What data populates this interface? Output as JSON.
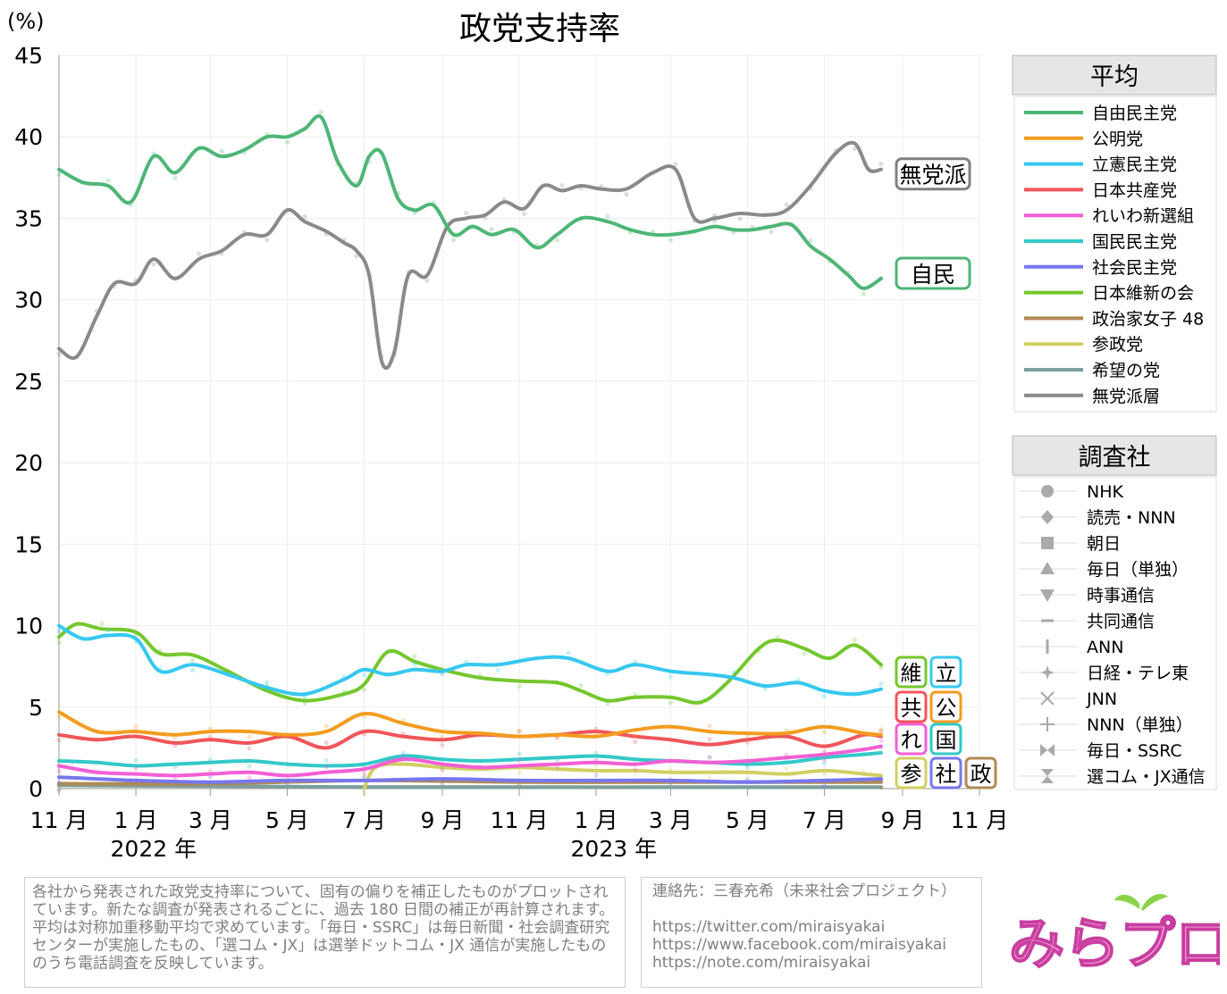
{
  "title": "政党支持率",
  "y_unit": "(%)",
  "chart_data": {
    "type": "line",
    "title": "政党支持率",
    "ylabel": "(%)",
    "ylim": [
      0,
      45
    ],
    "yticks": [
      0,
      5,
      10,
      15,
      20,
      25,
      30,
      35,
      40,
      45
    ],
    "xlim": [
      "2021-11-01",
      "2023-11-01"
    ],
    "x_ticks": [
      "11 月",
      "1 月",
      "3 月",
      "5 月",
      "7 月",
      "9 月",
      "11 月",
      "1 月",
      "3 月",
      "5 月",
      "7 月",
      "9 月",
      "11 月"
    ],
    "x_tick_dates": [
      "2021-11-01",
      "2022-01-01",
      "2022-03-01",
      "2022-05-01",
      "2022-07-01",
      "2022-09-01",
      "2022-11-01",
      "2023-01-01",
      "2023-03-01",
      "2023-05-01",
      "2023-07-01",
      "2023-09-01",
      "2023-11-01"
    ],
    "year_labels": [
      {
        "text": "2022 年",
        "date": "2022-01-15"
      },
      {
        "text": "2023 年",
        "date": "2023-01-15"
      }
    ],
    "grid": true,
    "legend_position": "right",
    "series": [
      {
        "name": "自由民主党",
        "color": "#4eb677",
        "x": [
          "2021-11-01",
          "2021-11-20",
          "2021-12-10",
          "2021-12-28",
          "2022-01-15",
          "2022-02-01",
          "2022-02-20",
          "2022-03-10",
          "2022-03-28",
          "2022-04-15",
          "2022-05-01",
          "2022-05-15",
          "2022-05-28",
          "2022-06-10",
          "2022-06-25",
          "2022-07-05",
          "2022-07-15",
          "2022-07-28",
          "2022-08-10",
          "2022-08-25",
          "2022-09-10",
          "2022-09-25",
          "2022-10-10",
          "2022-10-28",
          "2022-11-15",
          "2022-12-01",
          "2022-12-20",
          "2023-01-10",
          "2023-01-28",
          "2023-02-15",
          "2023-03-01",
          "2023-03-20",
          "2023-04-05",
          "2023-04-20",
          "2023-05-05",
          "2023-05-20",
          "2023-06-05",
          "2023-06-20",
          "2023-07-05",
          "2023-07-20",
          "2023-08-01",
          "2023-08-15"
        ],
        "y": [
          38.0,
          37.2,
          37.0,
          36.0,
          38.8,
          37.8,
          39.3,
          38.8,
          39.2,
          40.0,
          40.0,
          40.5,
          41.2,
          38.5,
          37.0,
          38.8,
          39.0,
          36.2,
          35.5,
          35.8,
          34.0,
          34.5,
          34.0,
          34.3,
          33.2,
          34.0,
          35.0,
          34.8,
          34.3,
          34.0,
          34.0,
          34.2,
          34.5,
          34.3,
          34.3,
          34.5,
          34.6,
          33.3,
          32.5,
          31.5,
          30.7,
          31.3
        ]
      },
      {
        "name": "公明党",
        "color": "#f39c1f",
        "x": [
          "2021-11-01",
          "2021-12-01",
          "2022-01-01",
          "2022-02-01",
          "2022-03-01",
          "2022-04-01",
          "2022-05-01",
          "2022-06-01",
          "2022-07-01",
          "2022-08-01",
          "2022-09-01",
          "2022-10-01",
          "2022-11-01",
          "2022-12-01",
          "2023-01-01",
          "2023-02-01",
          "2023-03-01",
          "2023-04-01",
          "2023-05-01",
          "2023-06-01",
          "2023-07-01",
          "2023-08-01",
          "2023-08-15"
        ],
        "y": [
          4.7,
          3.5,
          3.5,
          3.3,
          3.5,
          3.5,
          3.3,
          3.5,
          4.6,
          4.0,
          3.5,
          3.4,
          3.2,
          3.3,
          3.2,
          3.6,
          3.8,
          3.5,
          3.4,
          3.4,
          3.8,
          3.4,
          3.3
        ]
      },
      {
        "name": "立憲民主党",
        "color": "#36c8f0",
        "x": [
          "2021-11-01",
          "2021-11-20",
          "2021-12-10",
          "2022-01-01",
          "2022-01-20",
          "2022-02-15",
          "2022-03-15",
          "2022-04-15",
          "2022-05-15",
          "2022-06-15",
          "2022-07-01",
          "2022-07-20",
          "2022-08-10",
          "2022-09-01",
          "2022-09-20",
          "2022-10-15",
          "2022-11-15",
          "2022-12-10",
          "2023-01-10",
          "2023-02-01",
          "2023-03-01",
          "2023-04-01",
          "2023-04-20",
          "2023-05-15",
          "2023-06-10",
          "2023-07-01",
          "2023-07-25",
          "2023-08-15"
        ],
        "y": [
          10.0,
          9.2,
          9.4,
          9.2,
          7.2,
          7.6,
          7.0,
          6.2,
          5.8,
          6.7,
          7.3,
          7.0,
          7.3,
          7.2,
          7.6,
          7.6,
          8.0,
          8.0,
          7.2,
          7.6,
          7.2,
          7.0,
          6.8,
          6.3,
          6.5,
          6.0,
          5.8,
          6.1
        ]
      },
      {
        "name": "日本共産党",
        "color": "#f0555a",
        "x": [
          "2021-11-01",
          "2021-12-01",
          "2022-01-01",
          "2022-02-01",
          "2022-03-01",
          "2022-04-01",
          "2022-05-01",
          "2022-06-01",
          "2022-07-01",
          "2022-08-01",
          "2022-09-01",
          "2022-10-01",
          "2022-11-01",
          "2022-12-01",
          "2023-01-01",
          "2023-02-01",
          "2023-03-01",
          "2023-04-01",
          "2023-05-01",
          "2023-06-01",
          "2023-07-01",
          "2023-08-01",
          "2023-08-15"
        ],
        "y": [
          3.3,
          3.0,
          3.2,
          2.8,
          3.0,
          2.8,
          3.2,
          2.5,
          3.5,
          3.2,
          3.0,
          3.3,
          3.2,
          3.3,
          3.5,
          3.2,
          3.0,
          2.7,
          3.0,
          3.2,
          2.6,
          3.3,
          3.2
        ]
      },
      {
        "name": "れいわ新選組",
        "color": "#f35fd5",
        "x": [
          "2021-11-01",
          "2021-12-01",
          "2022-01-01",
          "2022-02-01",
          "2022-03-01",
          "2022-04-01",
          "2022-05-01",
          "2022-06-01",
          "2022-07-01",
          "2022-08-01",
          "2022-09-01",
          "2022-10-01",
          "2022-11-01",
          "2022-12-01",
          "2023-01-01",
          "2023-02-01",
          "2023-03-01",
          "2023-04-01",
          "2023-05-01",
          "2023-06-01",
          "2023-07-01",
          "2023-08-01",
          "2023-08-15"
        ],
        "y": [
          1.4,
          1.0,
          0.9,
          0.8,
          0.9,
          1.0,
          0.8,
          1.0,
          1.2,
          1.8,
          1.5,
          1.3,
          1.4,
          1.5,
          1.6,
          1.5,
          1.7,
          1.6,
          1.7,
          1.9,
          2.1,
          2.4,
          2.6
        ]
      },
      {
        "name": "国民民主党",
        "color": "#33c9c9",
        "x": [
          "2021-11-01",
          "2021-12-01",
          "2022-01-01",
          "2022-02-01",
          "2022-03-01",
          "2022-04-01",
          "2022-05-01",
          "2022-06-01",
          "2022-07-01",
          "2022-08-01",
          "2022-09-01",
          "2022-10-01",
          "2022-11-01",
          "2022-12-01",
          "2023-01-01",
          "2023-02-01",
          "2023-03-01",
          "2023-04-01",
          "2023-05-01",
          "2023-06-01",
          "2023-07-01",
          "2023-08-01",
          "2023-08-15"
        ],
        "y": [
          1.7,
          1.6,
          1.4,
          1.5,
          1.6,
          1.7,
          1.5,
          1.4,
          1.5,
          2.0,
          1.8,
          1.7,
          1.8,
          1.9,
          2.0,
          1.8,
          1.7,
          1.6,
          1.5,
          1.6,
          1.9,
          2.1,
          2.2
        ]
      },
      {
        "name": "社会民主党",
        "color": "#7777ee",
        "x": [
          "2021-11-01",
          "2022-01-01",
          "2022-03-01",
          "2022-05-01",
          "2022-07-01",
          "2022-09-01",
          "2022-11-01",
          "2023-01-01",
          "2023-03-01",
          "2023-05-01",
          "2023-07-01",
          "2023-08-15"
        ],
        "y": [
          0.7,
          0.5,
          0.4,
          0.5,
          0.5,
          0.6,
          0.5,
          0.5,
          0.5,
          0.4,
          0.5,
          0.6
        ]
      },
      {
        "name": "日本維新の会",
        "color": "#74c72d",
        "x": [
          "2021-11-01",
          "2021-11-15",
          "2021-12-05",
          "2022-01-01",
          "2022-01-20",
          "2022-02-15",
          "2022-03-15",
          "2022-04-15",
          "2022-05-15",
          "2022-06-15",
          "2022-07-01",
          "2022-07-20",
          "2022-08-10",
          "2022-09-01",
          "2022-10-01",
          "2022-11-01",
          "2022-12-01",
          "2022-12-20",
          "2023-01-10",
          "2023-02-01",
          "2023-03-01",
          "2023-03-25",
          "2023-04-15",
          "2023-05-10",
          "2023-05-25",
          "2023-06-15",
          "2023-07-05",
          "2023-07-25",
          "2023-08-15"
        ],
        "y": [
          9.3,
          10.1,
          9.8,
          9.6,
          8.3,
          8.2,
          7.2,
          6.0,
          5.4,
          5.8,
          6.4,
          8.4,
          7.8,
          7.3,
          6.8,
          6.6,
          6.5,
          6.0,
          5.4,
          5.6,
          5.6,
          5.3,
          6.5,
          8.6,
          9.1,
          8.6,
          8.0,
          8.8,
          7.6
        ]
      },
      {
        "name": "政治家女子 48",
        "color": "#b08a55",
        "x": [
          "2021-11-01",
          "2022-03-01",
          "2022-07-01",
          "2022-11-01",
          "2023-03-01",
          "2023-08-15"
        ],
        "y": [
          0.3,
          0.3,
          0.5,
          0.4,
          0.4,
          0.4
        ]
      },
      {
        "name": "参政党",
        "color": "#d1d062",
        "x": [
          "2022-07-01",
          "2022-07-10",
          "2022-08-01",
          "2022-09-01",
          "2022-10-01",
          "2022-11-01",
          "2022-12-01",
          "2023-01-01",
          "2023-02-01",
          "2023-03-01",
          "2023-04-01",
          "2023-05-01",
          "2023-06-01",
          "2023-07-01",
          "2023-08-01",
          "2023-08-15"
        ],
        "y": [
          0.0,
          1.3,
          1.5,
          1.3,
          1.2,
          1.3,
          1.2,
          1.1,
          1.1,
          1.0,
          1.0,
          1.0,
          0.9,
          1.1,
          0.9,
          0.8
        ]
      },
      {
        "name": "希望の党",
        "color": "#7c9f9b",
        "x": [
          "2021-11-01",
          "2022-07-01",
          "2023-08-15"
        ],
        "y": [
          0.2,
          0.1,
          0.1
        ]
      },
      {
        "name": "無党派層",
        "color": "#8a8a8a",
        "x": [
          "2021-11-01",
          "2021-11-15",
          "2021-12-01",
          "2021-12-15",
          "2022-01-01",
          "2022-01-15",
          "2022-02-01",
          "2022-02-20",
          "2022-03-10",
          "2022-03-28",
          "2022-04-15",
          "2022-05-01",
          "2022-05-15",
          "2022-06-01",
          "2022-06-15",
          "2022-06-25",
          "2022-07-05",
          "2022-07-15",
          "2022-07-25",
          "2022-08-05",
          "2022-08-20",
          "2022-09-05",
          "2022-09-20",
          "2022-10-05",
          "2022-10-20",
          "2022-11-05",
          "2022-11-20",
          "2022-12-05",
          "2022-12-20",
          "2023-01-05",
          "2023-01-25",
          "2023-02-15",
          "2023-03-05",
          "2023-03-20",
          "2023-04-05",
          "2023-04-25",
          "2023-05-15",
          "2023-06-01",
          "2023-06-20",
          "2023-07-10",
          "2023-07-25",
          "2023-08-05",
          "2023-08-15"
        ],
        "y": [
          27.0,
          26.5,
          29.0,
          31.0,
          31.0,
          32.5,
          31.3,
          32.5,
          33.0,
          34.0,
          34.0,
          35.5,
          34.8,
          34.2,
          33.5,
          33.0,
          31.5,
          26.2,
          26.8,
          31.5,
          31.5,
          34.5,
          35.0,
          35.2,
          36.0,
          35.6,
          37.0,
          36.7,
          37.0,
          36.8,
          36.8,
          37.8,
          38.0,
          35.0,
          35.0,
          35.3,
          35.2,
          35.5,
          37.0,
          39.0,
          39.6,
          38.0,
          38.0
        ]
      }
    ],
    "end_labels": [
      {
        "text": "無党派",
        "value": 38.0,
        "color": "#808080"
      },
      {
        "text": "自民",
        "value": 31.3,
        "color": "#4eb677"
      }
    ],
    "party_badges": [
      {
        "text": "維",
        "color": "#74c72d"
      },
      {
        "text": "立",
        "color": "#36c8f0"
      },
      {
        "text": "共",
        "color": "#f0555a"
      },
      {
        "text": "公",
        "color": "#f39c1f"
      },
      {
        "text": "れ",
        "color": "#f35fd5"
      },
      {
        "text": "国",
        "color": "#33c9c9"
      },
      {
        "text": "参",
        "color": "#d1d062"
      },
      {
        "text": "社",
        "color": "#7777ee"
      },
      {
        "text": "政",
        "color": "#b08a55"
      }
    ]
  },
  "legend_average": {
    "title": "平均",
    "items": [
      "自由民主党",
      "公明党",
      "立憲民主党",
      "日本共産党",
      "れいわ新選組",
      "国民民主党",
      "社会民主党",
      "日本維新の会",
      "政治家女子 48",
      "参政党",
      "希望の党",
      "無党派層"
    ]
  },
  "legend_pollsters": {
    "title": "調査社",
    "items": [
      {
        "label": "NHK",
        "marker": "circle"
      },
      {
        "label": "読売・NNN",
        "marker": "diamond"
      },
      {
        "label": "朝日",
        "marker": "square"
      },
      {
        "label": "毎日（単独）",
        "marker": "triangle-up"
      },
      {
        "label": "時事通信",
        "marker": "triangle-down"
      },
      {
        "label": "共同通信",
        "marker": "dash"
      },
      {
        "label": "ANN",
        "marker": "vbar"
      },
      {
        "label": "日経・テレ東",
        "marker": "star"
      },
      {
        "label": "JNN",
        "marker": "cross-x"
      },
      {
        "label": "NNN（単独）",
        "marker": "plus"
      },
      {
        "label": "毎日・SSRC",
        "marker": "bowtie"
      },
      {
        "label": "選コム・JX通信",
        "marker": "hourglass"
      }
    ]
  },
  "footer": {
    "note": "各社から発表された政党支持率について、固有の偏りを補正したものがプロットされています。新たな調査が発表されるごとに、過去 180 日間の補正が再計算されます。平均は対称加重移動平均で求めています。「毎日・SSRC」は毎日新聞・社会調査研究センターが実施したもの、「選コム・JX」は選挙ドットコム・JX 通信が実施したもののうち電話調査を反映しています。",
    "contact_label": "連絡先：三春充希（未来社会プロジェクト）",
    "links": [
      "https://twitter.com/miraisyakai",
      "https://www.facebook.com/miraisyakai",
      "https://note.com/miraisyakai"
    ],
    "logo_text": "みらプロ"
  }
}
